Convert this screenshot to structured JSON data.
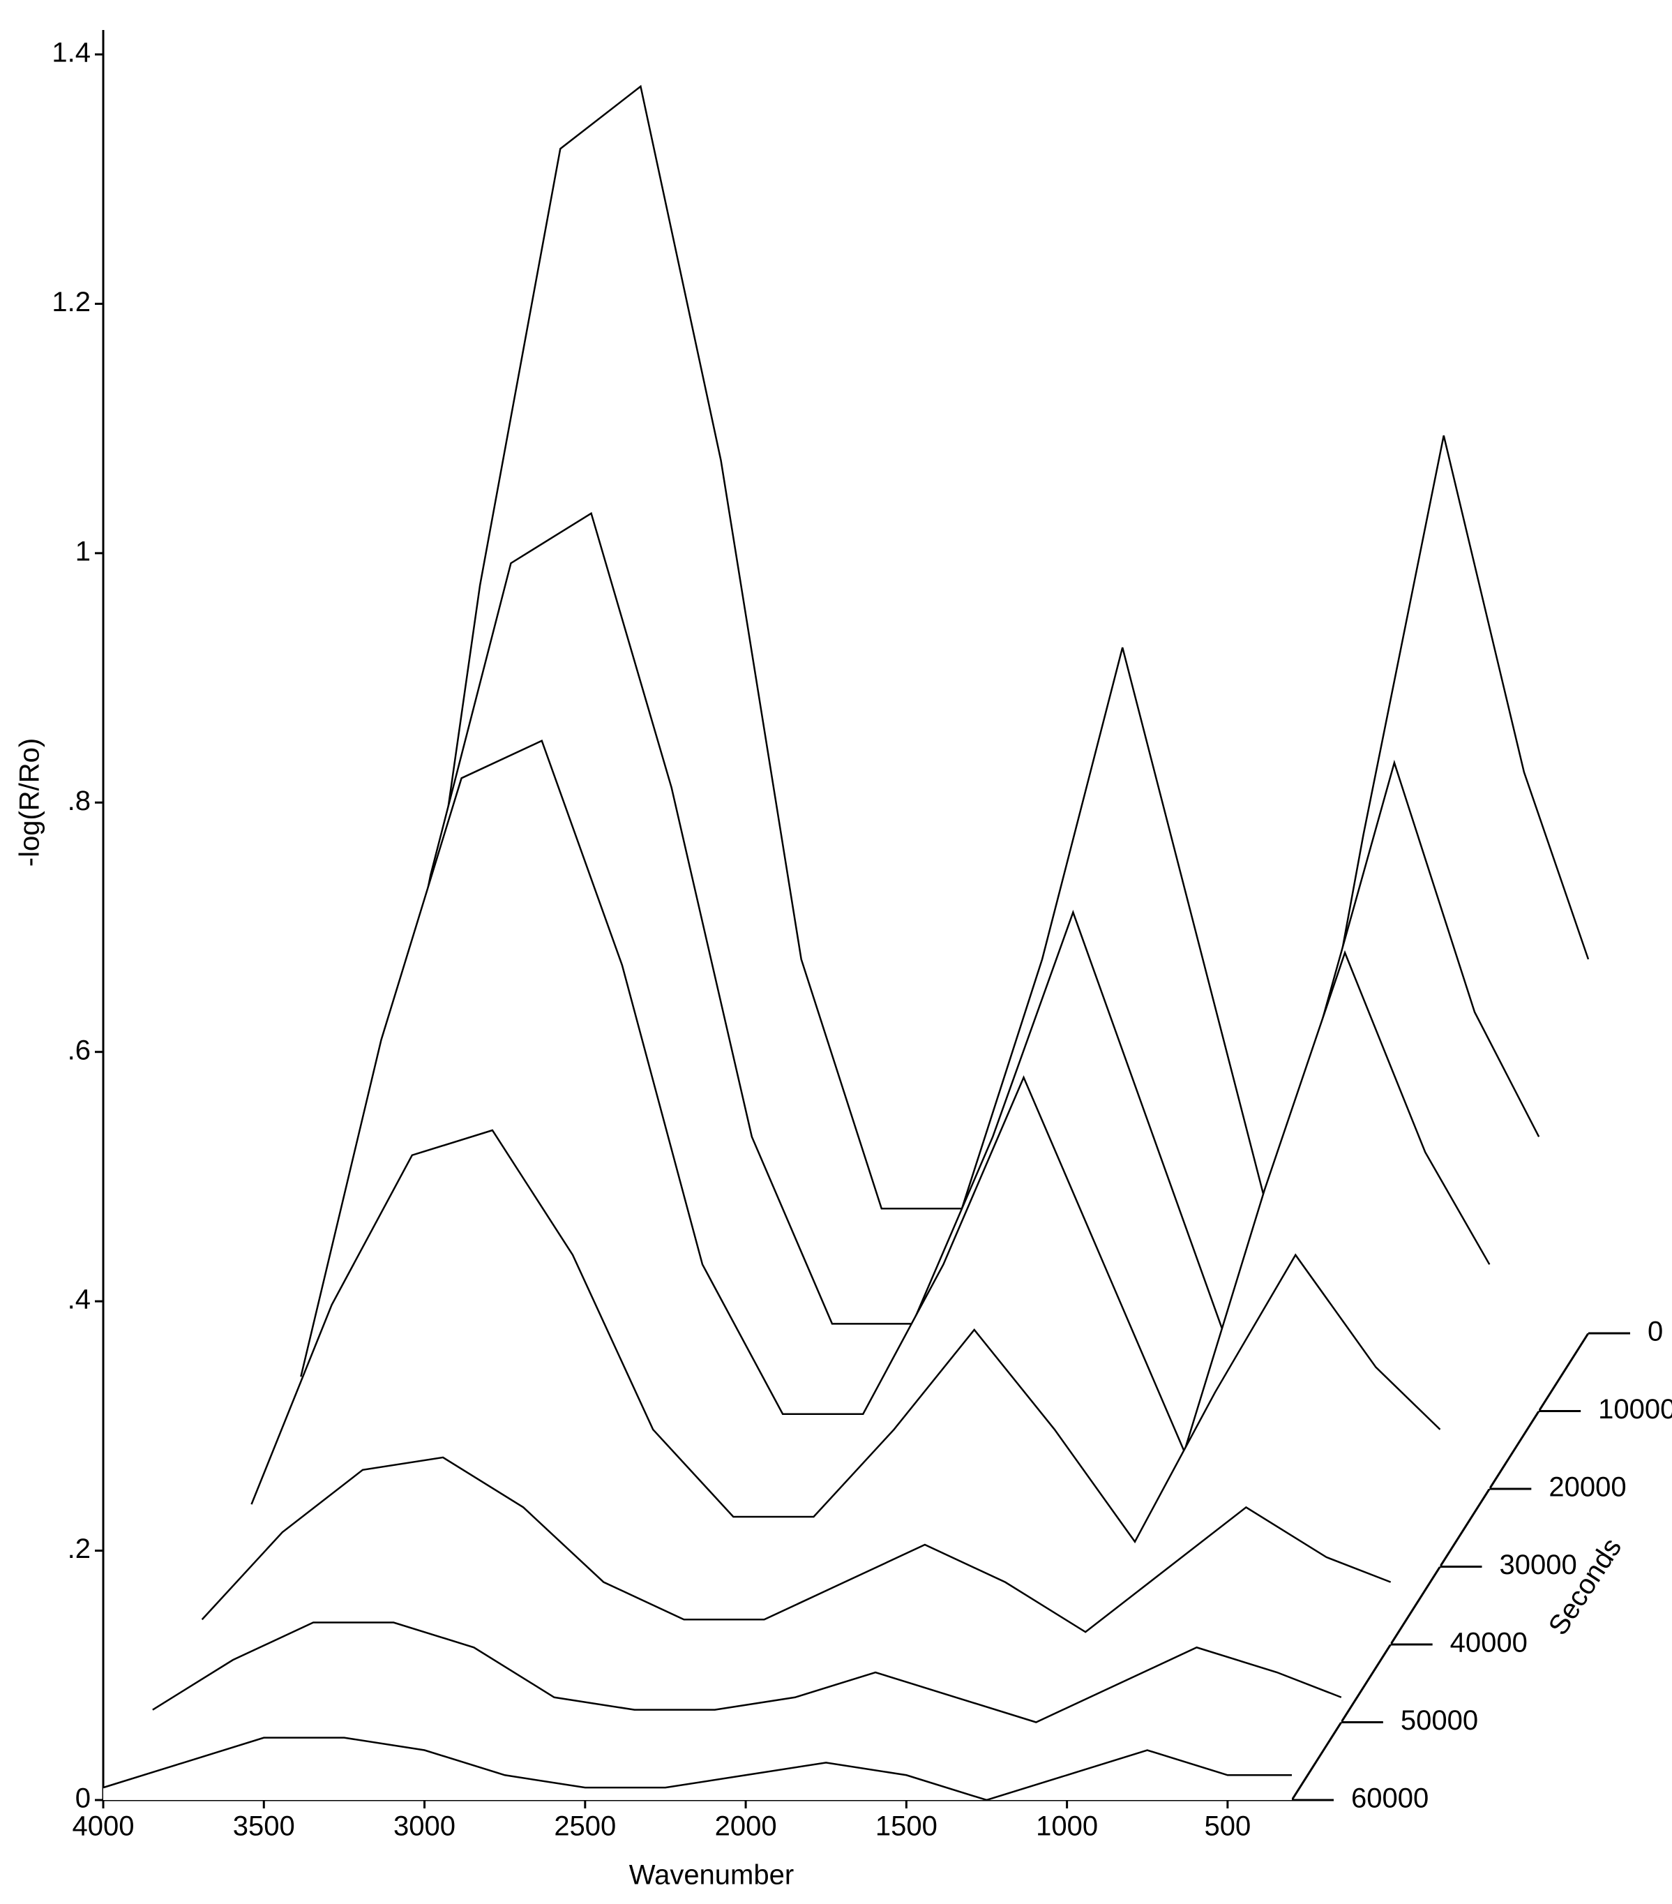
{
  "chart_data": {
    "type": "waterfall",
    "color": "#000000",
    "x_label": "Wavenumber",
    "y_label": "-log(R/Ro)",
    "z_label": "Seconds",
    "x": [
      4000,
      3750,
      3500,
      3250,
      3000,
      2750,
      2500,
      2250,
      2000,
      1750,
      1500,
      1250,
      1000,
      750,
      500,
      300
    ],
    "xlim": [
      4000,
      300
    ],
    "xticks": [
      4000,
      3500,
      3000,
      2500,
      2000,
      1500,
      1000,
      500
    ],
    "ylim": [
      0,
      1.4
    ],
    "yticks": [
      0,
      {
        "value": 0.2,
        "label": ".2"
      },
      {
        "value": 0.4,
        "label": ".4"
      },
      {
        "value": 0.6,
        "label": ".6"
      },
      {
        "value": 0.8,
        "label": ".8"
      },
      1,
      1.2,
      1.4
    ],
    "zlim": [
      0,
      60000
    ],
    "zticks": [
      0,
      10000,
      20000,
      30000,
      40000,
      50000,
      60000
    ],
    "series": [
      {
        "z": 0,
        "values": [
          0.15,
          0.6,
          0.95,
          1.0,
          0.7,
          0.3,
          0.1,
          0.1,
          0.3,
          0.55,
          0.3,
          0.05,
          0.4,
          0.72,
          0.45,
          0.3
        ]
      },
      {
        "z": 10000,
        "values": [
          0.11,
          0.43,
          0.68,
          0.72,
          0.5,
          0.22,
          0.07,
          0.07,
          0.22,
          0.4,
          0.22,
          0.04,
          0.29,
          0.52,
          0.32,
          0.22
        ]
      },
      {
        "z": 20000,
        "values": [
          0.09,
          0.36,
          0.57,
          0.6,
          0.42,
          0.18,
          0.06,
          0.06,
          0.18,
          0.33,
          0.18,
          0.03,
          0.24,
          0.43,
          0.27,
          0.18
        ]
      },
      {
        "z": 30000,
        "values": [
          0.05,
          0.21,
          0.33,
          0.35,
          0.25,
          0.11,
          0.04,
          0.04,
          0.11,
          0.19,
          0.11,
          0.02,
          0.14,
          0.25,
          0.16,
          0.11
        ]
      },
      {
        "z": 40000,
        "values": [
          0.02,
          0.09,
          0.14,
          0.15,
          0.11,
          0.05,
          0.02,
          0.02,
          0.05,
          0.08,
          0.05,
          0.01,
          0.06,
          0.11,
          0.07,
          0.05
        ]
      },
      {
        "z": 50000,
        "values": [
          0.01,
          0.05,
          0.08,
          0.08,
          0.06,
          0.02,
          0.01,
          0.01,
          0.02,
          0.04,
          0.02,
          0,
          0.03,
          0.06,
          0.04,
          0.02
        ]
      },
      {
        "z": 60000,
        "values": [
          0.01,
          0.03,
          0.05,
          0.05,
          0.04,
          0.02,
          0.01,
          0.01,
          0.02,
          0.03,
          0.02,
          0,
          0.02,
          0.04,
          0.02,
          0.02
        ]
      }
    ]
  }
}
